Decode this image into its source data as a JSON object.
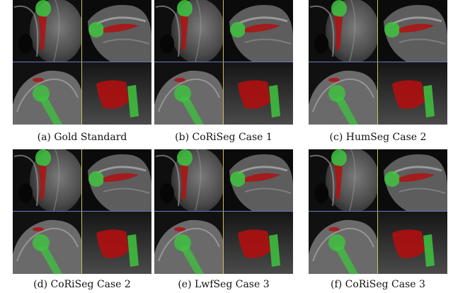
{
  "figure": {
    "panels": [
      {
        "id": "a",
        "caption": "(a) Gold Standard"
      },
      {
        "id": "b",
        "caption": "(b) CoRiSeg Case 1"
      },
      {
        "id": "c",
        "caption": "(c) HumSeg Case 2"
      },
      {
        "id": "d",
        "caption": "(d) CoRiSeg Case 2"
      },
      {
        "id": "e",
        "caption": "(e) LwfSeg Case 3"
      },
      {
        "id": "f",
        "caption": "(f) CoRiSeg Case 3"
      }
    ]
  },
  "colors": {
    "humerus_segmentation": "#3fc43f",
    "muscle_segmentation": "#b01010",
    "view_divider_vertical": "#c8c060",
    "view_divider_horizontal": "#6a7cc0"
  },
  "icons": {
    "mri_view": "mri-slice",
    "render_view": "3d-render"
  }
}
